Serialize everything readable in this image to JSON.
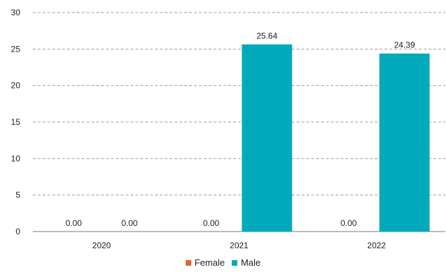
{
  "chart_data": {
    "type": "bar",
    "categories": [
      "2020",
      "2021",
      "2022"
    ],
    "series": [
      {
        "name": "Female",
        "color": "#E8632B",
        "values": [
          0.0,
          0.0,
          0.0
        ]
      },
      {
        "name": "Male",
        "color": "#00AABB",
        "values": [
          0.0,
          25.64,
          24.39
        ]
      }
    ],
    "data_labels": [
      [
        "0.00",
        "0.00",
        "0.00"
      ],
      [
        "0.00",
        "25.64",
        "24.39"
      ]
    ],
    "ylim": [
      0,
      30
    ],
    "yticks": [
      0,
      5,
      10,
      15,
      20,
      25,
      30
    ],
    "grid": true,
    "legend_position": "bottom-center",
    "title": "",
    "xlabel": "",
    "ylabel": ""
  }
}
